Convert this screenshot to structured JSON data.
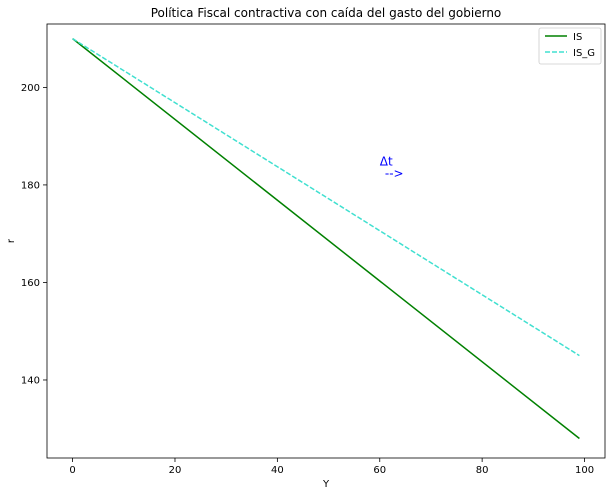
{
  "chart_data": {
    "type": "line",
    "title": "Política Fiscal contractiva con caída del gasto del gobierno",
    "xlabel": "Y",
    "ylabel": "r",
    "xlim": [
      -5,
      104
    ],
    "ylim": [
      124,
      213
    ],
    "xticks": [
      0,
      20,
      40,
      60,
      80,
      100
    ],
    "yticks": [
      140,
      160,
      180,
      200
    ],
    "grid": false,
    "legend_position": "top-right",
    "series": [
      {
        "name": "IS",
        "x": [
          0,
          99
        ],
        "y": [
          210,
          128
        ],
        "color": "#008000",
        "style": "solid"
      },
      {
        "name": "IS_G",
        "x": [
          0,
          99
        ],
        "y": [
          210,
          145
        ],
        "color": "#40e0d0",
        "style": "dashed"
      }
    ],
    "annotations": [
      {
        "text": "Δt",
        "x": 60,
        "y": 184,
        "color": "#0000ff"
      },
      {
        "text": "-->",
        "x": 61,
        "y": 181.5,
        "color": "#0000ff"
      }
    ]
  }
}
